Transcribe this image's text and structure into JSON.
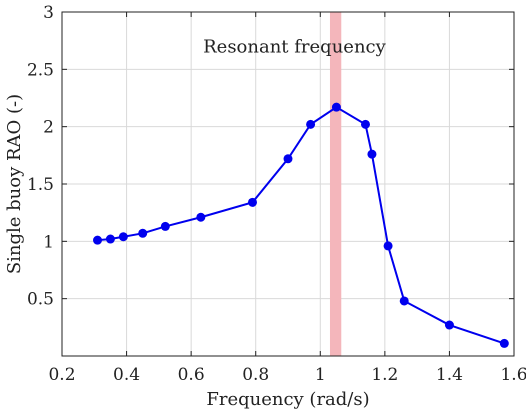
{
  "chart_data": {
    "type": "line",
    "title": "",
    "xlabel": "Frequency (rad/s)",
    "ylabel": "Single buoy RAO (-)",
    "xlim": [
      0.2,
      1.6
    ],
    "ylim": [
      0,
      3
    ],
    "xticks": [
      0.2,
      0.4,
      0.6,
      0.8,
      1.0,
      1.2,
      1.4,
      1.6
    ],
    "xtick_labels": [
      "0.2",
      "0.4",
      "0.6",
      "0.8",
      "1",
      "1.2",
      "1.4",
      "1.6"
    ],
    "yticks": [
      0.5,
      1.0,
      1.5,
      2.0,
      2.5,
      3.0
    ],
    "ytick_labels": [
      "0.5",
      "1",
      "1.5",
      "2",
      "2.5",
      "3"
    ],
    "grid": true,
    "series": [
      {
        "color": "#0000ee",
        "x": [
          0.31,
          0.35,
          0.39,
          0.45,
          0.52,
          0.63,
          0.79,
          0.9,
          0.97,
          1.05,
          1.14,
          1.16,
          1.21,
          1.26,
          1.4,
          1.57
        ],
        "y": [
          1.01,
          1.02,
          1.04,
          1.07,
          1.13,
          1.21,
          1.34,
          1.72,
          2.02,
          2.17,
          2.02,
          1.76,
          0.96,
          0.48,
          0.27,
          0.11
        ]
      }
    ],
    "highlight_band": {
      "x0": 1.03,
      "x1": 1.065,
      "color": "#f4b6bb"
    },
    "annotation": {
      "text": "Resonant frequency",
      "x": 0.92,
      "y": 2.7
    }
  }
}
